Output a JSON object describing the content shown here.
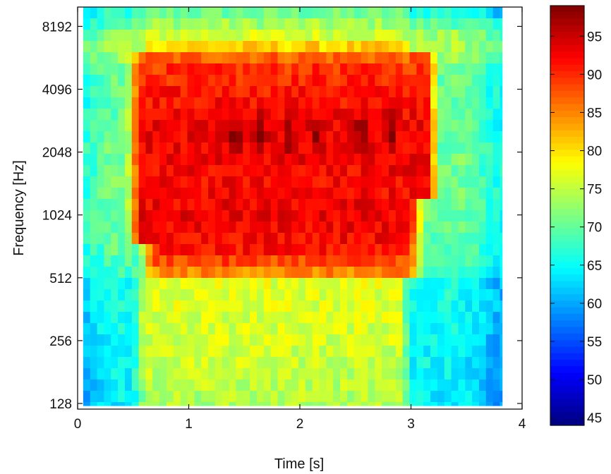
{
  "chart_data": {
    "type": "heatmap",
    "xlabel": "Time [s]",
    "ylabel": "Frequency [Hz]",
    "xlim": [
      0,
      4
    ],
    "x_visible_range": [
      0.05,
      3.82
    ],
    "y_scale": "log2",
    "ylim": [
      128,
      8192
    ],
    "x_ticks": [
      0,
      1,
      2,
      3,
      4
    ],
    "x_tick_labels": [
      "0",
      "1",
      "2",
      "3",
      "4"
    ],
    "y_ticks": [
      128,
      256,
      512,
      1024,
      2048,
      4096,
      8192
    ],
    "y_tick_labels": [
      "128",
      "256",
      "512",
      "1024",
      "2048",
      "4096",
      "8192"
    ],
    "colorbar": {
      "colormap": "jet",
      "range": [
        44,
        99
      ],
      "ticks": [
        45,
        50,
        55,
        60,
        65,
        70,
        75,
        80,
        85,
        90,
        95
      ],
      "tick_labels": [
        "45",
        "50",
        "55",
        "60",
        "65",
        "70",
        "75",
        "80",
        "85",
        "90",
        "95"
      ]
    },
    "grid": false,
    "level_profile_db": {
      "octaves_from_128Hz": [
        0,
        1,
        2,
        2.1,
        2.5,
        3,
        3.5,
        4,
        4.5,
        5,
        5.45,
        5.6,
        5.8,
        6.5
      ],
      "level_during_sound": [
        74,
        76,
        77,
        86,
        92,
        93,
        92,
        93,
        92.5,
        91,
        89,
        83,
        77,
        66
      ],
      "level_outside_sound": [
        64,
        65,
        66,
        68,
        70,
        71,
        71,
        71,
        70,
        70,
        72,
        74,
        74,
        62
      ]
    },
    "sound_onset_s": [
      0.55,
      0.62,
      0.5,
      0.62
    ],
    "sound_offset_s": [
      2.95,
      3.05,
      3.2,
      2.95
    ],
    "peak_times_s": [
      1.42,
      1.65,
      1.9,
      2.15,
      2.55,
      2.82
    ],
    "peak_level_db": 99
  }
}
